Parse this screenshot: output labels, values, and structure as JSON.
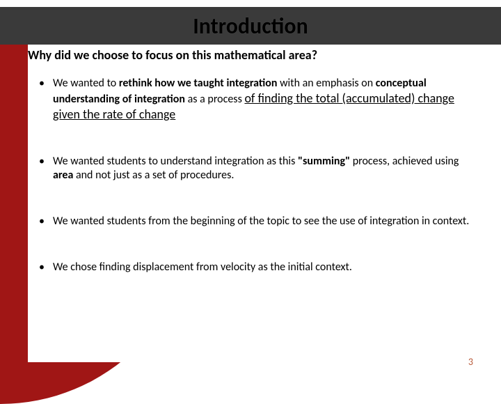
{
  "colors": {
    "titlebar_bg": "#3a3a3a",
    "accent_red": "#a01615",
    "text": "#000000",
    "page_num": "#b85a3a",
    "background": "#ffffff"
  },
  "title": "Introduction",
  "subtitle": "Why did we choose to focus on this mathematical area?",
  "bullets": {
    "b1_pre": "We wanted to ",
    "b1_bold1": "rethink how we taught integration ",
    "b1_mid": "with an emphasis on ",
    "b1_bold2": "conceptual understanding of integration ",
    "b1_mid2": "as a process ",
    "b1_under": "of finding the total (accumulated) change given the rate of change",
    "b2_pre": "We wanted students to understand integration as this ",
    "b2_bold1": "\"summing\"",
    "b2_mid": " process, achieved using ",
    "b2_bold2": "area",
    "b2_post": " and not just as a set of procedures.",
    "b3": "We wanted students  from the beginning of the topic to see  the use of integration  in context.",
    "b4": "We chose finding displacement from velocity as the initial context."
  },
  "page_number": "3"
}
